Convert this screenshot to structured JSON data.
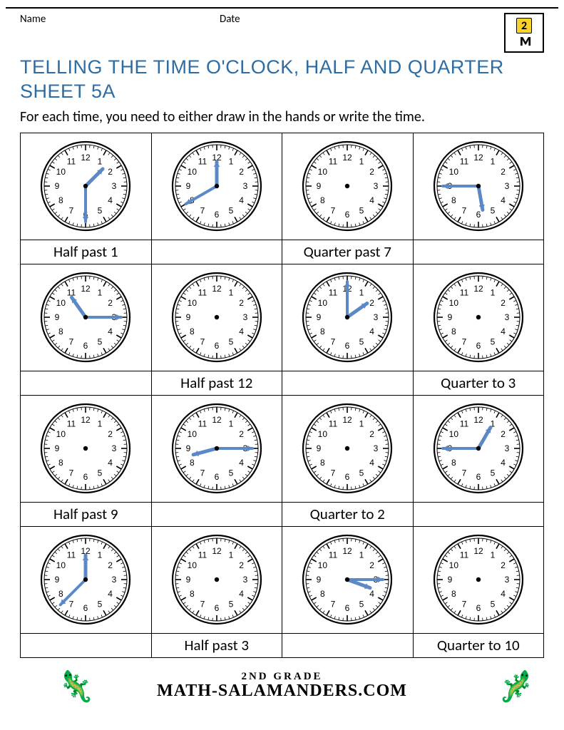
{
  "header": {
    "name_label": "Name",
    "date_label": "Date",
    "logo_badge": "2"
  },
  "title": "TELLING THE TIME O'CLOCK, HALF AND QUARTER SHEET 5A",
  "instructions": "For each time, you need to either draw in the hands or write the time.",
  "clock_style": {
    "face_stroke": "#000000",
    "face_fill": "#ffffff",
    "numeral_color": "#000000",
    "numeral_fontsize": 12,
    "hand_color": "#5b89c7",
    "hand_color_dark": "#4a78b6",
    "center_dot_color": "#000000"
  },
  "grid": [
    {
      "clocks": [
        {
          "hour_angle": 45,
          "minute_angle": 180,
          "show_hands": true
        },
        {
          "hour_angle": 360,
          "minute_angle": 240,
          "show_hands": true
        },
        {
          "show_hands": false
        },
        {
          "hour_angle": 170,
          "minute_angle": 270,
          "show_hands": true
        }
      ],
      "answers": [
        "Half past 1",
        "",
        "Quarter past 7",
        ""
      ]
    },
    {
      "clocks": [
        {
          "hour_angle": 325,
          "minute_angle": 90,
          "show_hands": true
        },
        {
          "show_hands": false
        },
        {
          "hour_angle": 55,
          "minute_angle": 0,
          "show_hands": true
        },
        {
          "show_hands": false
        }
      ],
      "answers": [
        "",
        "Half past 12",
        "",
        "Quarter to 3"
      ]
    },
    {
      "clocks": [
        {
          "show_hands": false
        },
        {
          "hour_angle": 255,
          "minute_angle": 90,
          "show_hands": true
        },
        {
          "show_hands": false
        },
        {
          "hour_angle": 30,
          "minute_angle": 270,
          "show_hands": true
        }
      ],
      "answers": [
        "Half past 9",
        "",
        "Quarter to 2",
        ""
      ]
    },
    {
      "clocks": [
        {
          "hour_angle": 0,
          "minute_angle": 225,
          "show_hands": true
        },
        {
          "show_hands": false
        },
        {
          "hour_angle": 110,
          "minute_angle": 90,
          "show_hands": true
        },
        {
          "show_hands": false
        }
      ],
      "answers": [
        "",
        "Half past 3",
        "",
        "Quarter to 10"
      ]
    }
  ],
  "footer": {
    "line1": "2ND GRADE",
    "line2": "MATH-SALAMANDERS.COM"
  }
}
